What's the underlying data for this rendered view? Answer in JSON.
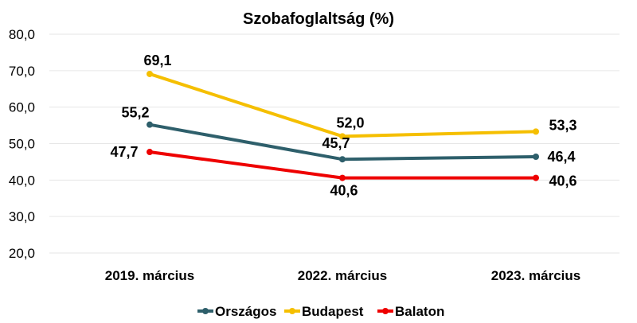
{
  "chart_data": {
    "type": "line",
    "title": "Szobafoglaltság (%)",
    "categories": [
      "2019. március",
      "2022. március",
      "2023. március"
    ],
    "yticks": [
      "20,0",
      "30,0",
      "40,0",
      "50,0",
      "60,0",
      "70,0",
      "80,0"
    ],
    "ylim": [
      20,
      80
    ],
    "grid": true,
    "legend": "bottom",
    "series": [
      {
        "name": "Országos",
        "color": "#2e5f6b",
        "values": [
          55.2,
          45.7,
          46.4
        ],
        "labels": [
          "55,2",
          "45,7",
          "46,4"
        ]
      },
      {
        "name": "Budapest",
        "color": "#f5bf00",
        "values": [
          69.1,
          52.0,
          53.3
        ],
        "labels": [
          "69,1",
          "52,0",
          "53,3"
        ]
      },
      {
        "name": "Balaton",
        "color": "#ee0000",
        "values": [
          47.7,
          40.6,
          40.6
        ],
        "labels": [
          "47,7",
          "40,6",
          "40,6"
        ]
      }
    ]
  }
}
